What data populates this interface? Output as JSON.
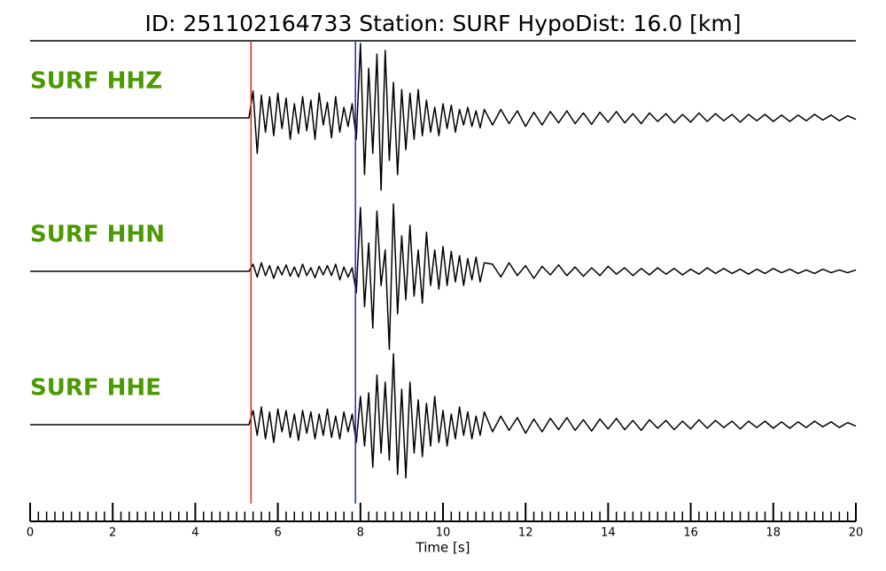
{
  "chart_data": {
    "type": "seismogram",
    "title": "ID: 251102164733   Station: SURF   HypoDist:    16.0 [km]",
    "xlabel": "Time [s]",
    "xlim": [
      0,
      20
    ],
    "xticks": [
      0,
      2,
      4,
      6,
      8,
      10,
      12,
      14,
      16,
      18,
      20
    ],
    "xminor_ticks": [
      0.2,
      0.4,
      0.6,
      0.8,
      1,
      1.2,
      1.4,
      1.6,
      1.8,
      2.2,
      2.4,
      2.6,
      2.8,
      3,
      3.2,
      3.4,
      3.6,
      3.8,
      4.2,
      4.4,
      4.6,
      4.8,
      5,
      5.2,
      5.4,
      5.6,
      5.8,
      6.2,
      6.4,
      6.6,
      6.8,
      7,
      7.2,
      7.4,
      7.6,
      7.8,
      8.2,
      8.4,
      8.6,
      8.8,
      9,
      9.2,
      9.4,
      9.6,
      9.8,
      10.2,
      10.4,
      10.6,
      10.8,
      11,
      11.2,
      11.4,
      11.6,
      11.8,
      12.2,
      12.4,
      12.6,
      12.8,
      13,
      13.2,
      13.4,
      13.6,
      13.8,
      14.2,
      14.4,
      14.6,
      14.8,
      15,
      15.2,
      15.4,
      15.6,
      15.8,
      16.2,
      16.4,
      16.6,
      16.8,
      17,
      17.2,
      17.4,
      17.6,
      17.8,
      18.2,
      18.4,
      18.6,
      18.8,
      19,
      19.2,
      19.4,
      19.6,
      19.8
    ],
    "ylim": [
      -1.2,
      1.2
    ],
    "label_color": "#4a9a00",
    "markers": [
      {
        "x": 5.35,
        "color": "#e8211c"
      },
      {
        "x": 7.88,
        "color": "#1c22c8"
      }
    ],
    "x": [
      0,
      1,
      2,
      3,
      4,
      5,
      5.2,
      5.3,
      5.4,
      5.5,
      5.6,
      5.7,
      5.8,
      5.9,
      6.0,
      6.1,
      6.2,
      6.3,
      6.4,
      6.5,
      6.6,
      6.7,
      6.8,
      6.9,
      7.0,
      7.1,
      7.2,
      7.3,
      7.4,
      7.5,
      7.6,
      7.7,
      7.8,
      7.9,
      8.0,
      8.1,
      8.2,
      8.3,
      8.4,
      8.5,
      8.6,
      8.7,
      8.8,
      8.9,
      9.0,
      9.1,
      9.2,
      9.3,
      9.4,
      9.5,
      9.6,
      9.7,
      9.8,
      9.9,
      10.0,
      10.1,
      10.2,
      10.3,
      10.4,
      10.5,
      10.6,
      10.7,
      10.8,
      10.9,
      11.0,
      11.2,
      11.4,
      11.6,
      11.8,
      12.0,
      12.2,
      12.4,
      12.6,
      12.8,
      13.0,
      13.2,
      13.4,
      13.6,
      13.8,
      14.0,
      14.2,
      14.4,
      14.6,
      14.8,
      15.0,
      15.2,
      15.4,
      15.6,
      15.8,
      16.0,
      16.2,
      16.4,
      16.6,
      16.8,
      17.0,
      17.2,
      17.4,
      17.6,
      17.8,
      18.0,
      18.2,
      18.4,
      18.6,
      18.8,
      19.0,
      19.2,
      19.4,
      19.6,
      19.8,
      20.0
    ],
    "series": [
      {
        "name": "SURF HHZ",
        "color": "#000000",
        "values": [
          0,
          0,
          0,
          0,
          0,
          0,
          0,
          0.0,
          0.38,
          -0.5,
          0.32,
          -0.2,
          0.3,
          -0.25,
          0.35,
          -0.15,
          0.28,
          -0.3,
          0.2,
          -0.22,
          0.3,
          -0.18,
          0.25,
          -0.3,
          0.35,
          -0.1,
          0.22,
          -0.28,
          0.3,
          -0.2,
          0.15,
          -0.12,
          0.2,
          -0.3,
          1.05,
          -0.8,
          0.7,
          -0.5,
          0.9,
          -1.02,
          0.95,
          -0.6,
          0.5,
          -0.8,
          0.4,
          -0.45,
          0.35,
          -0.3,
          0.4,
          -0.25,
          0.25,
          -0.2,
          0.15,
          -0.25,
          0.2,
          -0.15,
          0.18,
          -0.2,
          0.12,
          -0.1,
          0.15,
          -0.12,
          0.1,
          -0.14,
          0.12,
          -0.1,
          0.12,
          -0.08,
          0.1,
          -0.12,
          0.08,
          -0.1,
          0.09,
          -0.07,
          0.1,
          -0.08,
          0.07,
          -0.09,
          0.08,
          -0.06,
          0.09,
          -0.07,
          0.06,
          -0.08,
          0.07,
          -0.05,
          0.06,
          -0.07,
          0.05,
          -0.06,
          0.07,
          -0.05,
          0.06,
          -0.04,
          0.05,
          -0.06,
          0.05,
          -0.04,
          0.05,
          -0.05,
          0.04,
          -0.05,
          0.04,
          -0.04,
          0.05,
          -0.03,
          0.04,
          -0.04,
          0.03,
          -0.02
        ]
      },
      {
        "name": "SURF HHN",
        "color": "#000000",
        "values": [
          0,
          0,
          0,
          0,
          0,
          0,
          0,
          0.0,
          0.1,
          -0.08,
          0.12,
          -0.06,
          0.08,
          -0.1,
          0.07,
          -0.05,
          0.09,
          -0.07,
          0.06,
          -0.08,
          0.1,
          -0.06,
          0.05,
          -0.09,
          0.07,
          -0.05,
          0.08,
          -0.06,
          0.1,
          -0.12,
          0.06,
          -0.08,
          0.05,
          -0.3,
          0.9,
          -0.5,
          0.4,
          -0.8,
          0.85,
          -0.2,
          0.3,
          -1.1,
          0.95,
          -0.6,
          0.5,
          -0.4,
          0.65,
          -0.35,
          0.3,
          -0.45,
          0.55,
          -0.2,
          0.3,
          -0.25,
          0.35,
          -0.2,
          0.28,
          -0.15,
          0.22,
          -0.2,
          0.18,
          -0.12,
          0.2,
          -0.15,
          0.12,
          0.1,
          -0.08,
          0.12,
          -0.06,
          0.08,
          -0.1,
          0.07,
          -0.05,
          0.09,
          -0.06,
          0.06,
          -0.07,
          0.05,
          -0.06,
          0.07,
          -0.04,
          0.05,
          -0.06,
          0.04,
          -0.05,
          0.05,
          -0.04,
          0.04,
          -0.05,
          0.03,
          -0.04,
          0.05,
          -0.03,
          0.04,
          -0.03,
          0.03,
          -0.04,
          0.03,
          -0.03,
          0.04,
          -0.02,
          0.03,
          -0.03,
          0.02,
          -0.03,
          0.03,
          -0.02,
          0.02,
          -0.02,
          0.02
        ]
      },
      {
        "name": "SURF HHE",
        "color": "#000000",
        "values": [
          0,
          0,
          0,
          0,
          0,
          0,
          0,
          0.0,
          0.2,
          -0.15,
          0.25,
          -0.2,
          0.18,
          -0.25,
          0.22,
          -0.1,
          0.2,
          -0.18,
          0.15,
          -0.22,
          0.2,
          -0.12,
          0.18,
          -0.2,
          0.15,
          -0.15,
          0.22,
          -0.18,
          0.12,
          -0.2,
          0.18,
          -0.1,
          0.15,
          -0.25,
          0.4,
          -0.3,
          0.45,
          -0.6,
          0.7,
          -0.4,
          0.6,
          -0.5,
          1.0,
          -0.7,
          0.5,
          -0.75,
          0.6,
          -0.4,
          0.35,
          -0.45,
          0.3,
          -0.3,
          0.4,
          -0.25,
          0.2,
          -0.3,
          0.15,
          -0.2,
          0.25,
          -0.15,
          0.18,
          -0.2,
          0.12,
          -0.15,
          0.18,
          -0.1,
          0.12,
          -0.08,
          0.1,
          -0.12,
          0.08,
          -0.1,
          0.09,
          -0.07,
          0.1,
          -0.08,
          0.07,
          -0.09,
          0.08,
          -0.06,
          0.09,
          -0.07,
          0.06,
          -0.08,
          0.07,
          -0.05,
          0.06,
          -0.07,
          0.05,
          -0.06,
          0.07,
          -0.05,
          0.06,
          -0.04,
          0.05,
          -0.06,
          0.05,
          -0.04,
          0.05,
          -0.05,
          0.04,
          -0.05,
          0.04,
          -0.04,
          0.05,
          -0.03,
          0.04,
          -0.04,
          0.03,
          -0.02
        ]
      }
    ]
  }
}
